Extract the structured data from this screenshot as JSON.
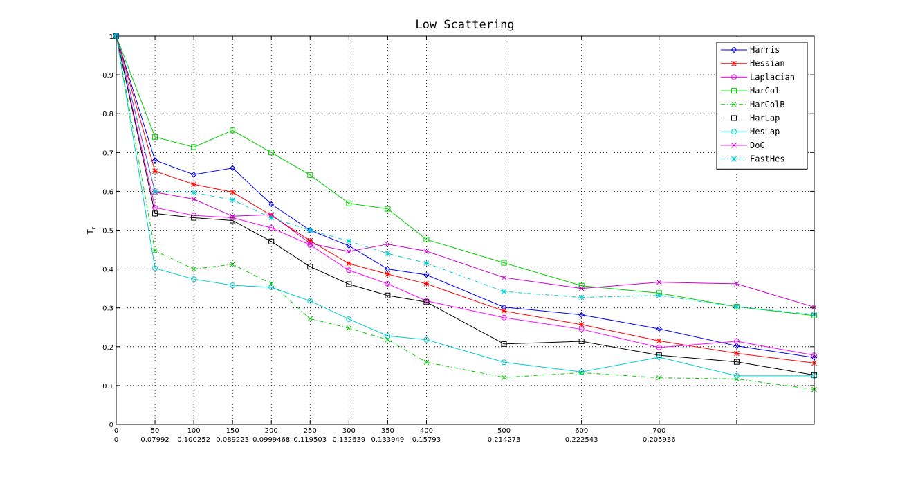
{
  "chart_data": {
    "type": "line",
    "title": "Low Scattering",
    "xlabel": "",
    "ylabel": "T",
    "ylabel_sub": "r",
    "xlim": [
      0,
      900
    ],
    "ylim": [
      0,
      1
    ],
    "grid": true,
    "legend_position": "top-right",
    "x": [
      0,
      50,
      100,
      150,
      200,
      250,
      300,
      350,
      400,
      500,
      600,
      700,
      800,
      900
    ],
    "x_tick_labels": [
      {
        "x": 0,
        "label": "0",
        "sublabel": "0"
      },
      {
        "x": 50,
        "label": "50",
        "sublabel": "0.07992"
      },
      {
        "x": 100,
        "label": "100",
        "sublabel": "0.100252"
      },
      {
        "x": 150,
        "label": "150",
        "sublabel": "0.089223"
      },
      {
        "x": 200,
        "label": "200",
        "sublabel": "0.0999468"
      },
      {
        "x": 250,
        "label": "250",
        "sublabel": "0.119503"
      },
      {
        "x": 300,
        "label": "300",
        "sublabel": "0.132639"
      },
      {
        "x": 350,
        "label": "350",
        "sublabel": "0.133949"
      },
      {
        "x": 400,
        "label": "400",
        "sublabel": "0.15793"
      },
      {
        "x": 500,
        "label": "500",
        "sublabel": "0.214273"
      },
      {
        "x": 600,
        "label": "600",
        "sublabel": "0.222543"
      },
      {
        "x": 700,
        "label": "700",
        "sublabel": "0.205936"
      }
    ],
    "y_ticks": [
      0,
      0.1,
      0.2,
      0.3,
      0.4,
      0.5,
      0.6,
      0.7,
      0.8,
      0.9,
      1
    ],
    "y_tick_labels": [
      "0",
      "0.1",
      "0.2",
      "0.3",
      "0.4",
      "0.5",
      "0.6",
      "0.7",
      "0.8",
      "0.9",
      "1"
    ],
    "series": [
      {
        "name": "Harris",
        "color": "#0000ff",
        "marker": "diamond",
        "dash": "solid",
        "values": [
          1.0,
          0.68,
          0.643,
          0.66,
          0.567,
          0.5,
          0.46,
          0.4,
          0.385,
          0.302,
          0.282,
          0.246,
          0.202,
          0.172
        ]
      },
      {
        "name": "Hessian",
        "color": "#ff0000",
        "marker": "star",
        "dash": "solid",
        "values": [
          1.0,
          0.652,
          0.618,
          0.598,
          0.538,
          0.473,
          0.414,
          0.387,
          0.362,
          0.292,
          0.257,
          0.215,
          0.183,
          0.158
        ]
      },
      {
        "name": "Laplacian",
        "color": "#ff00ff",
        "marker": "circle",
        "dash": "solid",
        "values": [
          1.0,
          0.558,
          0.538,
          0.532,
          0.506,
          0.462,
          0.397,
          0.362,
          0.318,
          0.275,
          0.245,
          0.198,
          0.214,
          0.178
        ]
      },
      {
        "name": "HarCol",
        "color": "#00cc00",
        "marker": "square",
        "dash": "solid",
        "values": [
          1.0,
          0.74,
          0.714,
          0.757,
          0.7,
          0.642,
          0.569,
          0.555,
          0.476,
          0.416,
          0.357,
          0.338,
          0.303,
          0.28
        ]
      },
      {
        "name": "HarColB",
        "color": "#00cc00",
        "marker": "x",
        "dash": "dashdot",
        "values": [
          1.0,
          0.447,
          0.4,
          0.412,
          0.362,
          0.272,
          0.248,
          0.218,
          0.16,
          0.121,
          0.133,
          0.12,
          0.117,
          0.09
        ]
      },
      {
        "name": "HarLap",
        "color": "#000000",
        "marker": "square",
        "dash": "solid",
        "values": [
          1.0,
          0.543,
          0.532,
          0.525,
          0.471,
          0.406,
          0.361,
          0.332,
          0.315,
          0.207,
          0.214,
          0.178,
          0.161,
          0.127
        ]
      },
      {
        "name": "HesLap",
        "color": "#00cccc",
        "marker": "circle",
        "dash": "solid",
        "values": [
          1.0,
          0.402,
          0.374,
          0.358,
          0.353,
          0.318,
          0.271,
          0.228,
          0.218,
          0.16,
          0.135,
          0.173,
          0.125,
          0.125
        ]
      },
      {
        "name": "DoG",
        "color": "#cc00cc",
        "marker": "x",
        "dash": "solid",
        "values": [
          1.0,
          0.598,
          0.58,
          0.536,
          0.54,
          0.466,
          0.445,
          0.464,
          0.446,
          0.378,
          0.35,
          0.366,
          0.362,
          0.302
        ]
      },
      {
        "name": "FastHes",
        "color": "#00cccc",
        "marker": "star",
        "dash": "dashdot",
        "values": [
          1.0,
          0.6,
          0.597,
          0.578,
          0.532,
          0.5,
          0.472,
          0.44,
          0.415,
          0.342,
          0.327,
          0.332,
          0.303,
          0.283
        ]
      }
    ]
  }
}
